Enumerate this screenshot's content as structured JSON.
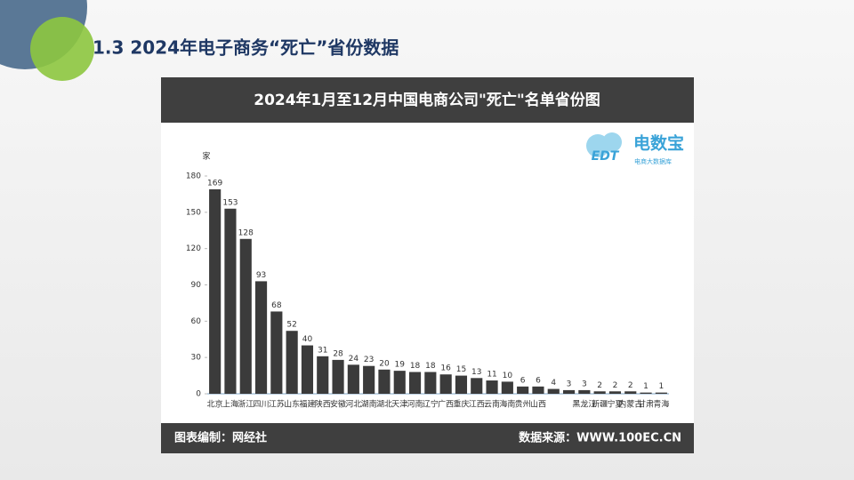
{
  "slide_title": "1.3 2024年电子商务“死亡”省份数据",
  "logo": {
    "mark": "EDT",
    "name": "电数宝",
    "sub": "电商大数据库"
  },
  "footer": {
    "left": "图表编制：网经社",
    "right": "数据来源：WWW.100EC.CN"
  },
  "chart_data": {
    "type": "bar",
    "title": "2024年1月至12月中国电商公司\"死亡\"名单省份图",
    "y_label": "家",
    "categories": [
      "北京",
      "上海",
      "浙江",
      "四川",
      "江苏",
      "山东",
      "福建",
      "陕西",
      "安徽",
      "河北",
      "湖南",
      "湖北",
      "天津",
      "河南",
      "辽宁",
      "广西",
      "重庆",
      "江西",
      "云南",
      "海南",
      "贵州",
      "山西",
      null,
      null,
      "黑龙江",
      "新疆",
      "宁夏",
      "内蒙古",
      "甘肃",
      "青海"
    ],
    "values": [
      169,
      153,
      128,
      93,
      68,
      52,
      40,
      31,
      28,
      24,
      23,
      20,
      19,
      18,
      18,
      16,
      15,
      13,
      11,
      10,
      6,
      6,
      4,
      3,
      3,
      2,
      2,
      2,
      1,
      1
    ],
    "color": "#3b3b3b",
    "ylim": [
      0,
      180
    ],
    "yticks": [
      0,
      30,
      60,
      90,
      120,
      150,
      180
    ],
    "grid": false
  }
}
